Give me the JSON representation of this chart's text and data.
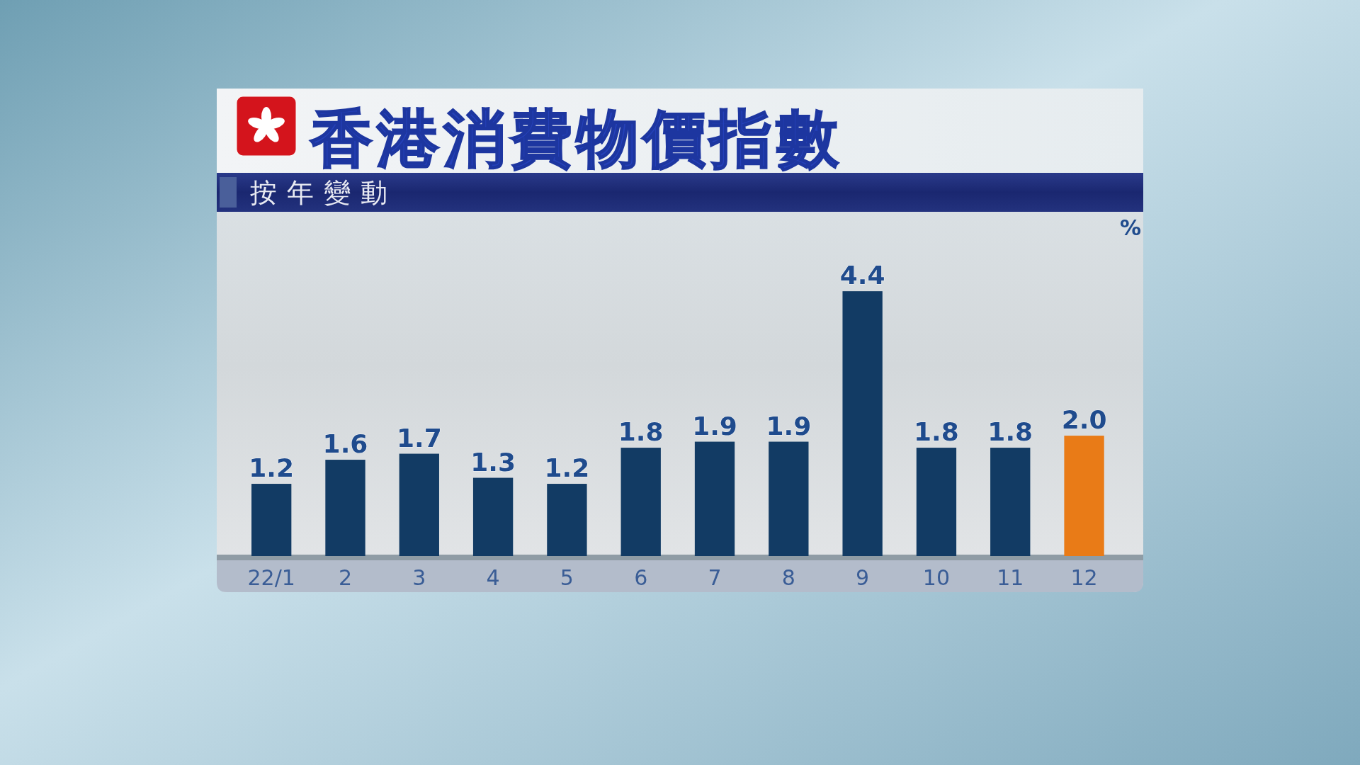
{
  "chart_data": {
    "type": "bar",
    "title": "香港消費物價指數",
    "subtitle": "按年變動",
    "ylabel": "%",
    "categories": [
      "22/1",
      "2",
      "3",
      "4",
      "5",
      "6",
      "7",
      "8",
      "9",
      "10",
      "11",
      "12"
    ],
    "values": [
      1.2,
      1.6,
      1.7,
      1.3,
      1.2,
      1.8,
      1.9,
      1.9,
      4.4,
      1.8,
      1.8,
      2.0
    ],
    "value_labels": [
      "1.2",
      "1.6",
      "1.7",
      "1.3",
      "1.2",
      "1.8",
      "1.9",
      "1.9",
      "4.4",
      "1.8",
      "1.8",
      "2.0"
    ],
    "colors": [
      "#123b64",
      "#123b64",
      "#123b64",
      "#123b64",
      "#123b64",
      "#123b64",
      "#123b64",
      "#123b64",
      "#123b64",
      "#123b64",
      "#123b64",
      "#e97b17"
    ]
  }
}
